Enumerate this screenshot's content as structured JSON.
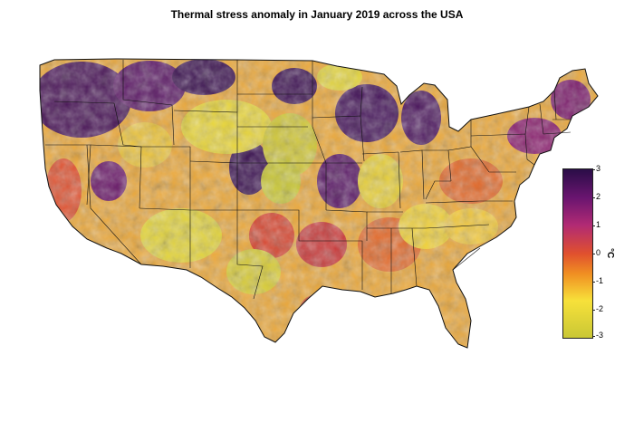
{
  "title": "Thermal stress anomaly in January 2019 across the USA",
  "legend": {
    "unit": "°C",
    "ticks": [
      "3",
      "2",
      "1",
      "0",
      "-1",
      "-2",
      "-3"
    ],
    "min": -3,
    "max": 3,
    "colors": [
      "#2a0d47",
      "#6a1570",
      "#b12a74",
      "#e0502e",
      "#f08f22",
      "#f7e13a",
      "#c9c735"
    ]
  }
}
